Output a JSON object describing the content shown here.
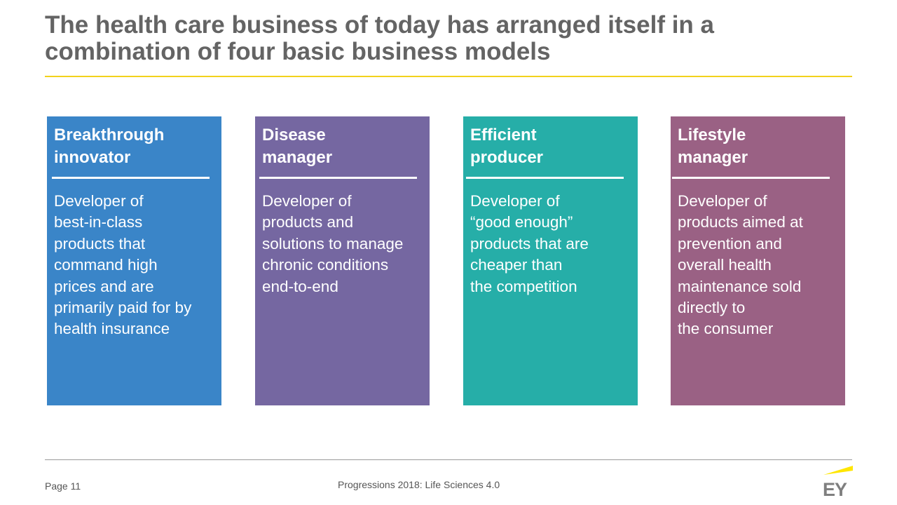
{
  "slide": {
    "title": "The health care business of today has arranged itself in a combination of four basic business models"
  },
  "cards": [
    {
      "heading": "Breakthrough\ninnovator",
      "body": "Developer of\nbest-in-class\nproducts that\ncommand high\nprices and are\nprimarily paid for by\nhealth insurance",
      "color": "#3a85c8"
    },
    {
      "heading": "Disease\nmanager",
      "body": "Developer of\nproducts and\nsolutions to manage\nchronic conditions\nend-to-end",
      "color": "#7567a1"
    },
    {
      "heading": "Efficient\nproducer",
      "body": "Developer of\n“good enough”\nproducts that are\ncheaper than\nthe competition",
      "color": "#26aea8"
    },
    {
      "heading": "Lifestyle\nmanager",
      "body": "Developer of\nproducts aimed at\nprevention and\noverall health\nmaintenance sold\ndirectly to\nthe consumer",
      "color": "#9a6184"
    }
  ],
  "footer": {
    "page": "Page 11",
    "center_text": "Progressions 2018: Life Sciences 4.0",
    "logo_text": "EY",
    "logo_accent_color": "#ffe600",
    "logo_text_color": "#7f7f7f"
  }
}
